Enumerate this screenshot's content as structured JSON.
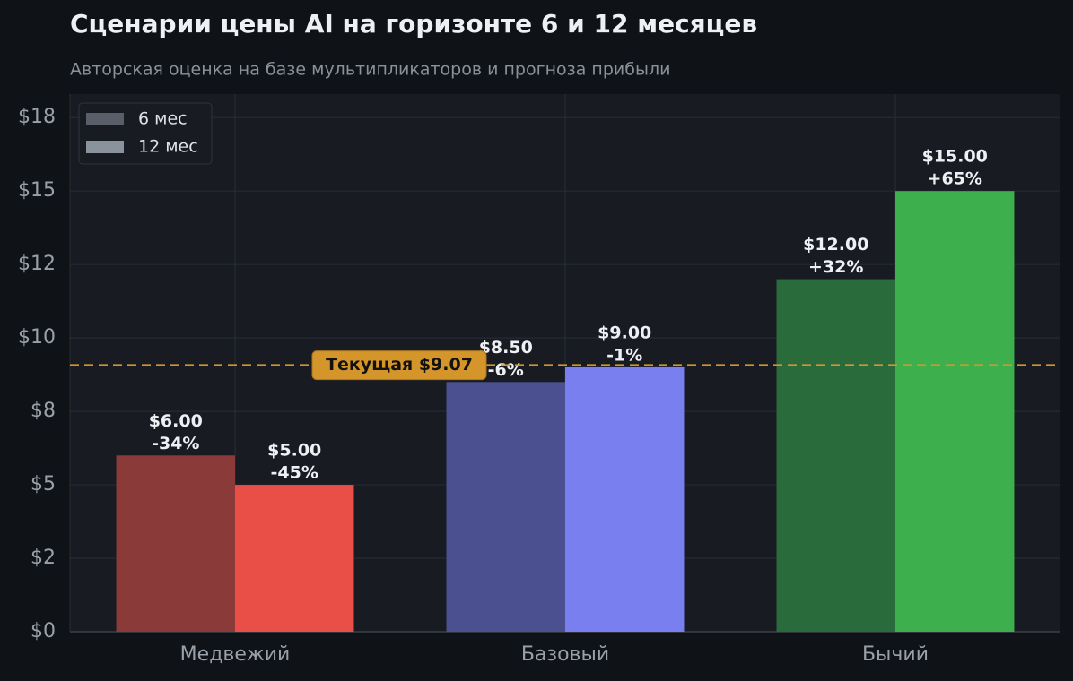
{
  "chart_data": {
    "type": "bar",
    "title": "Сценарии цены AI на горизонте 6 и 12 месяцев",
    "subtitle": "Авторская оценка на базе мультипликаторов и прогноза прибыли",
    "categories": [
      "Медвежий",
      "Базовый",
      "Бычий"
    ],
    "series": [
      {
        "name": "6 мес",
        "color": "#5a5e68",
        "colors": [
          "#8b3a3a",
          "#4b5190",
          "#2a6b3c"
        ],
        "values": [
          6,
          8.5,
          12
        ],
        "value_labels": [
          "$6.00",
          "$8.50",
          "$12.00"
        ],
        "change_labels": [
          "-34%",
          "-6%",
          "+32%"
        ]
      },
      {
        "name": "12 мес",
        "color": "#8a929c",
        "colors": [
          "#e94f47",
          "#7a7ff0",
          "#3db04d"
        ],
        "values": [
          5,
          9,
          15
        ],
        "value_labels": [
          "$5.00",
          "$9.00",
          "$15.00"
        ],
        "change_labels": [
          "-45%",
          "-1%",
          "+65%"
        ]
      }
    ],
    "reference_line": {
      "value": 9.07,
      "label": "Текущая $9.07",
      "color": "#d4952a"
    },
    "ylim": [
      0,
      18.3
    ],
    "yticks": [
      {
        "value": 0,
        "label": "$0"
      },
      {
        "value": 2.5,
        "label": "$2"
      },
      {
        "value": 5,
        "label": "$5"
      },
      {
        "value": 7.5,
        "label": "$8"
      },
      {
        "value": 10,
        "label": "$10"
      },
      {
        "value": 12.5,
        "label": "$12"
      },
      {
        "value": 15,
        "label": "$15"
      },
      {
        "value": 17.5,
        "label": "$18"
      }
    ],
    "grid": true,
    "legend": "upper left"
  }
}
